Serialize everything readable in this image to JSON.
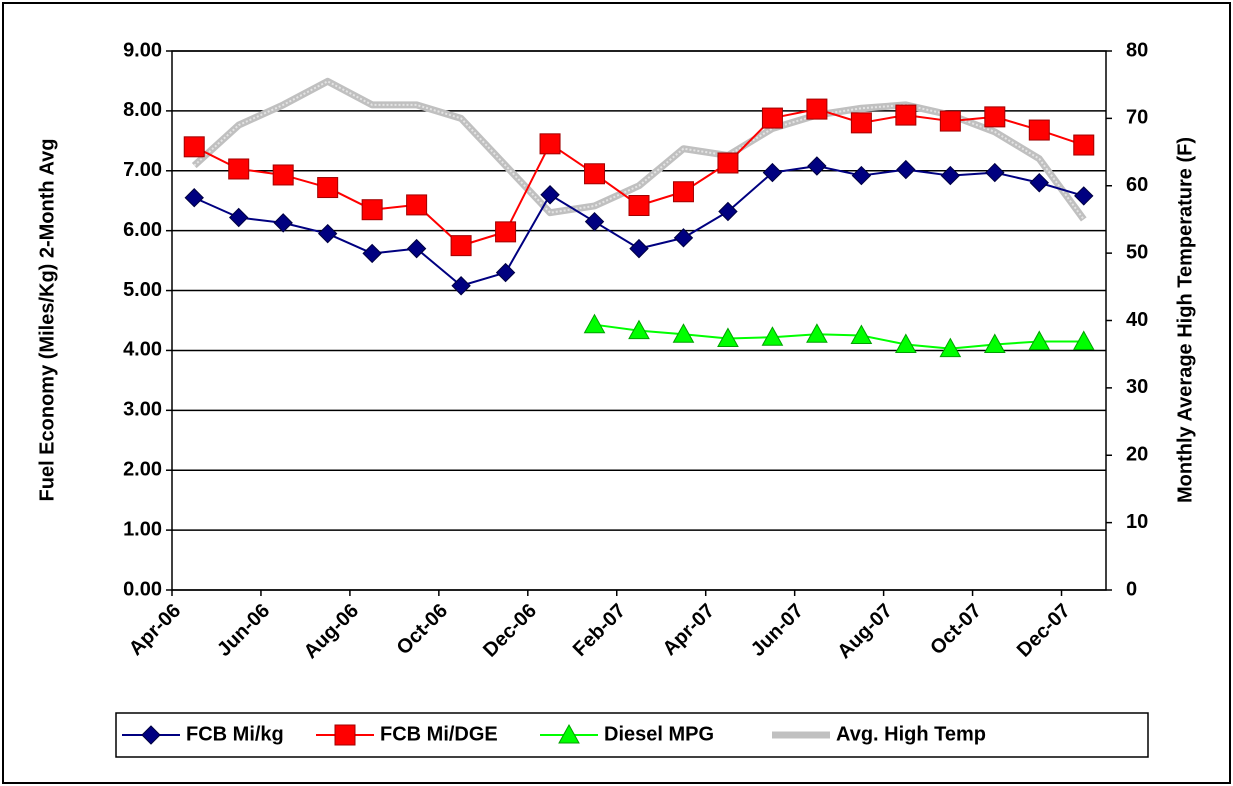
{
  "chart_data": {
    "type": "line",
    "y_label": "Fuel Economy (Miles/Kg) 2-Month Avg",
    "y2_label": "Monthly Average High Temperature (F)",
    "categories": [
      "Apr-06",
      null,
      "Jun-06",
      null,
      "Aug-06",
      null,
      "Oct-06",
      null,
      "Dec-06",
      null,
      "Feb-07",
      null,
      "Apr-07",
      null,
      "Jun-07",
      null,
      "Aug-07",
      null,
      "Oct-07",
      null,
      "Dec-07"
    ],
    "ylim": [
      0,
      9
    ],
    "yticks": [
      {
        "value": 0,
        "label": "0.00"
      },
      {
        "value": 1,
        "label": "1.00"
      },
      {
        "value": 2,
        "label": "2.00"
      },
      {
        "value": 3,
        "label": "3.00"
      },
      {
        "value": 4,
        "label": "4.00"
      },
      {
        "value": 5,
        "label": "5.00"
      },
      {
        "value": 6,
        "label": "6.00"
      },
      {
        "value": 7,
        "label": "7.00"
      },
      {
        "value": 8,
        "label": "8.00"
      },
      {
        "value": 9,
        "label": "9.00"
      }
    ],
    "y2lim": [
      0,
      80
    ],
    "y2ticks": [
      0,
      10,
      20,
      30,
      40,
      50,
      60,
      70,
      80
    ],
    "grid": true,
    "legend": "bottom",
    "series": [
      {
        "name": "FCB Mi/kg",
        "color": "#000080",
        "marker": "diamond",
        "values": [
          6.55,
          6.22,
          6.13,
          5.95,
          5.62,
          5.7,
          5.08,
          5.3,
          6.6,
          6.15,
          5.7,
          5.88,
          6.32,
          6.97,
          7.08,
          6.92,
          7.02,
          6.92,
          6.97,
          6.8,
          6.58
        ]
      },
      {
        "name": "FCB Mi/DGE",
        "color": "#ff0000",
        "marker": "square",
        "values": [
          7.4,
          7.03,
          6.93,
          6.72,
          6.35,
          6.43,
          5.75,
          5.98,
          7.45,
          6.95,
          6.42,
          6.65,
          7.13,
          7.88,
          8.03,
          7.8,
          7.93,
          7.83,
          7.9,
          7.68,
          7.43
        ]
      },
      {
        "name": "Diesel MPG",
        "color": "#00ff00",
        "marker": "triangle",
        "values": [
          null,
          null,
          null,
          null,
          null,
          null,
          null,
          null,
          null,
          4.43,
          4.33,
          4.27,
          4.2,
          4.22,
          4.27,
          4.25,
          4.1,
          4.03,
          4.1,
          4.15,
          4.15
        ]
      },
      {
        "name": "Avg. High Temp",
        "color": "#c0c0c0",
        "marker": "none",
        "axis": "y2",
        "values": [
          63,
          69,
          72,
          75.5,
          72,
          72,
          70,
          63,
          56,
          57,
          60,
          65.5,
          64.5,
          68.5,
          70.5,
          71.5,
          72,
          70.5,
          68,
          64,
          55
        ]
      }
    ]
  }
}
